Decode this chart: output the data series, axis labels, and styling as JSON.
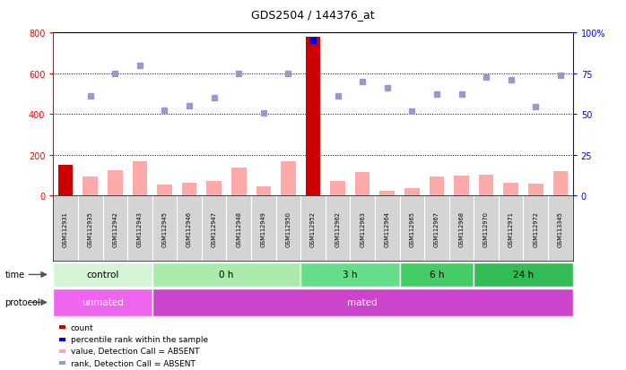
{
  "title": "GDS2504 / 144376_at",
  "samples": [
    "GSM112931",
    "GSM112935",
    "GSM112942",
    "GSM112943",
    "GSM112945",
    "GSM112946",
    "GSM112947",
    "GSM112948",
    "GSM112949",
    "GSM112950",
    "GSM112952",
    "GSM112962",
    "GSM112963",
    "GSM112964",
    "GSM112965",
    "GSM112967",
    "GSM112968",
    "GSM112970",
    "GSM112971",
    "GSM112972",
    "GSM113345"
  ],
  "bar_values": [
    150,
    95,
    125,
    170,
    55,
    65,
    70,
    140,
    45,
    170,
    780,
    70,
    115,
    25,
    35,
    95,
    100,
    105,
    65,
    60,
    120
  ],
  "rank_values": [
    null,
    490,
    600,
    640,
    420,
    440,
    480,
    600,
    405,
    600,
    760,
    490,
    560,
    530,
    415,
    500,
    500,
    580,
    570,
    435,
    590
  ],
  "bar_is_red": [
    true,
    false,
    false,
    false,
    false,
    false,
    false,
    false,
    false,
    false,
    true,
    false,
    false,
    false,
    false,
    false,
    false,
    false,
    false,
    false,
    false
  ],
  "ylim_left": [
    0,
    800
  ],
  "ylim_right": [
    0,
    100
  ],
  "yticks_left": [
    0,
    200,
    400,
    600,
    800
  ],
  "yticks_right": [
    0,
    25,
    50,
    75,
    100
  ],
  "ytick_labels_left": [
    "0",
    "200",
    "400",
    "600",
    "800"
  ],
  "ytick_labels_right": [
    "0",
    "25",
    "50",
    "75",
    "100%"
  ],
  "grid_values": [
    200,
    400,
    600
  ],
  "time_groups": [
    {
      "label": "control",
      "start": 0,
      "end": 4,
      "color": "#d6f5d6"
    },
    {
      "label": "0 h",
      "start": 4,
      "end": 10,
      "color": "#aaeaaa"
    },
    {
      "label": "3 h",
      "start": 10,
      "end": 14,
      "color": "#66dd88"
    },
    {
      "label": "6 h",
      "start": 14,
      "end": 17,
      "color": "#44cc66"
    },
    {
      "label": "24 h",
      "start": 17,
      "end": 21,
      "color": "#33bb55"
    }
  ],
  "protocol_groups": [
    {
      "label": "unmated",
      "start": 0,
      "end": 4,
      "color": "#ee66ee"
    },
    {
      "label": "mated",
      "start": 4,
      "end": 21,
      "color": "#cc44cc"
    }
  ],
  "bar_color_normal": "#ffaaaa",
  "bar_color_red": "#cc0000",
  "rank_color": "#9999cc",
  "rank_color_special": "#0000cc",
  "label_bg_color": "#d4d4d4",
  "bg_color": "#ffffff",
  "legend_items": [
    {
      "color": "#cc0000",
      "label": "count"
    },
    {
      "color": "#0000cc",
      "label": "percentile rank within the sample"
    },
    {
      "color": "#ffaaaa",
      "label": "value, Detection Call = ABSENT"
    },
    {
      "color": "#9999cc",
      "label": "rank, Detection Call = ABSENT"
    }
  ]
}
